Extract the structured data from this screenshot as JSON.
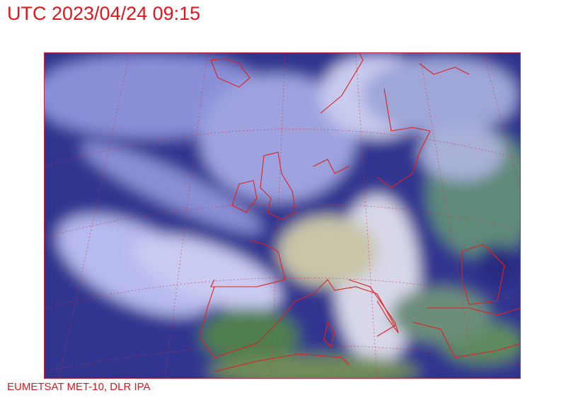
{
  "header": {
    "title": "UTC 2023/04/24 09:15"
  },
  "footer": {
    "credit": "EUMETSAT MET-10, DLR IPA"
  },
  "map": {
    "type": "satellite-image",
    "region": "Europe",
    "overlays": [
      "coastlines",
      "lat-lon-grid"
    ],
    "colors": {
      "text": "#e8141c",
      "coastline": "#e02020",
      "grid": "#d03040",
      "sea": "#2e2f8a",
      "land": "#3f7a5a",
      "cloud": "#c8c8f0"
    }
  }
}
